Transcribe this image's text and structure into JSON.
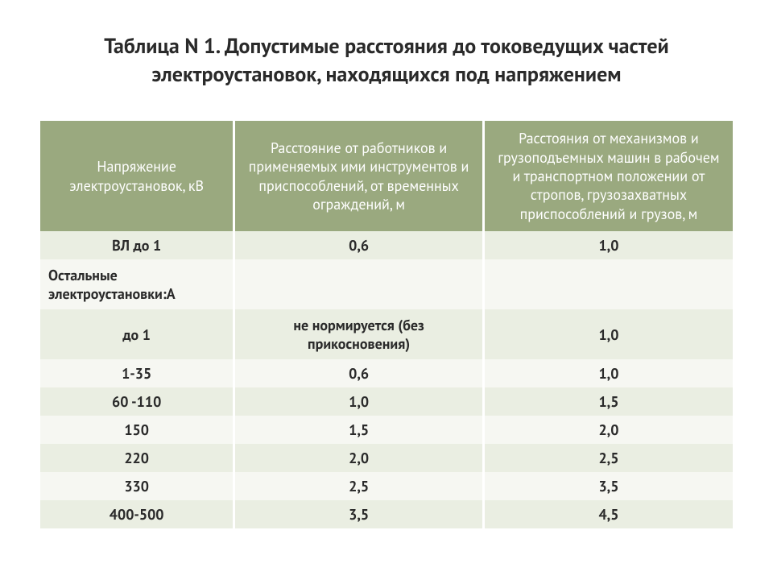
{
  "title": "Таблица N 1. Допустимые расстояния до токоведущих частей электроустановок, находящихся под напряжением",
  "table": {
    "type": "table",
    "header_bg": "#9aa97f",
    "header_fg": "#ffffff",
    "row_odd_bg": "#eaeee2",
    "row_even_bg": "#f6f7f2",
    "border_color": "#ffffff",
    "font_size": 18,
    "columns": [
      {
        "label": "Напряжение электроустановок, кВ",
        "width_pct": 28,
        "align": "center"
      },
      {
        "label": "Расстояние от работников и применяемых ими инструментов и приспособлений, от временных ограждений, м",
        "width_pct": 36,
        "align": "center"
      },
      {
        "label": "Расстояния от механизмов и грузоподъемных машин в рабочем и транспортном положении от стропов, грузозахватных приспособлений и грузов, м",
        "width_pct": 36,
        "align": "center"
      }
    ],
    "rows": [
      {
        "c0": "ВЛ до 1",
        "c1": "0,6",
        "c2": "1,0"
      },
      {
        "c0": "Остальные электроустановки:А",
        "c1": "",
        "c2": "",
        "left": true
      },
      {
        "c0": "до 1",
        "c1": "не нормируется (без прикосновения)",
        "c2": "1,0"
      },
      {
        "c0": "1-35",
        "c1": "0,6",
        "c2": "1,0"
      },
      {
        "c0": "60 -110",
        "c1": "1,0",
        "c2": "1,5"
      },
      {
        "c0": "150",
        "c1": "1,5",
        "c2": "2,0"
      },
      {
        "c0": "220",
        "c1": "2,0",
        "c2": "2,5"
      },
      {
        "c0": "330",
        "c1": "2,5",
        "c2": "3,5"
      },
      {
        "c0": "400-500",
        "c1": "3,5",
        "c2": "4,5"
      }
    ]
  }
}
